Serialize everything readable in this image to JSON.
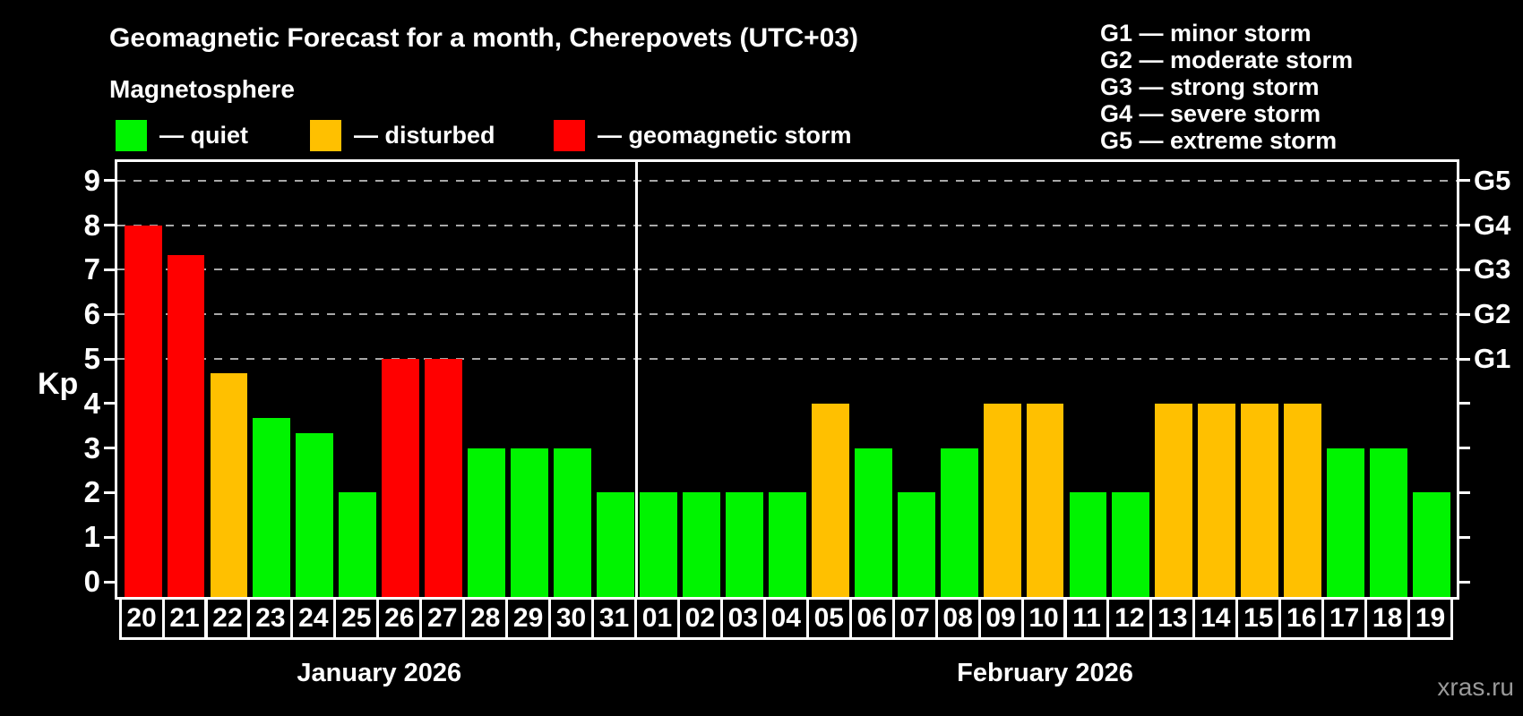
{
  "title": "Geomagnetic Forecast for a month, Cherepovets (UTC+03)",
  "subtitle": "Magnetosphere",
  "legend": {
    "items": [
      {
        "key": "quiet",
        "label": "— quiet"
      },
      {
        "key": "disturbed",
        "label": "— disturbed"
      },
      {
        "key": "storm",
        "label": "— geomagnetic storm"
      }
    ]
  },
  "g_legend": [
    "G1 — minor storm",
    "G2 — moderate storm",
    "G3 — strong storm",
    "G4 — severe storm",
    "G5 — extreme storm"
  ],
  "colors": {
    "quiet": "#00f400",
    "disturbed": "#ffc000",
    "storm": "#ff0000",
    "grid": "#a8a8a8",
    "axis": "#ffffff",
    "background": "#000000",
    "watermark": "#999999"
  },
  "watermark": "xras.ru",
  "chart_data": {
    "type": "bar",
    "title": "Geomagnetic Forecast for a month, Cherepovets (UTC+03)",
    "ylabel": "Kp",
    "ylim": [
      -0.4,
      9.4
    ],
    "y_ticks": [
      "0",
      "1",
      "2",
      "3",
      "4",
      "5",
      "6",
      "7",
      "8",
      "9"
    ],
    "grid_lines_kp": [
      5,
      6,
      7,
      8,
      9
    ],
    "right_axis": [
      {
        "kp": 5,
        "label": "G1"
      },
      {
        "kp": 6,
        "label": "G2"
      },
      {
        "kp": 7,
        "label": "G3"
      },
      {
        "kp": 8,
        "label": "G4"
      },
      {
        "kp": 9,
        "label": "G5"
      }
    ],
    "months": [
      {
        "label": "January 2026",
        "days": 12
      },
      {
        "label": "February 2026",
        "days": 19
      }
    ],
    "categories": [
      "20",
      "21",
      "22",
      "23",
      "24",
      "25",
      "26",
      "27",
      "28",
      "29",
      "30",
      "31",
      "01",
      "02",
      "03",
      "04",
      "05",
      "06",
      "07",
      "08",
      "09",
      "10",
      "11",
      "12",
      "13",
      "14",
      "15",
      "16",
      "17",
      "18",
      "19"
    ],
    "values": [
      8,
      7.33,
      4.67,
      3.67,
      3.33,
      2,
      5,
      5,
      3,
      3,
      3,
      2,
      2,
      2,
      2,
      2,
      4,
      3,
      2,
      3,
      4,
      4,
      2,
      2,
      4,
      4,
      4,
      4,
      3,
      3,
      2
    ],
    "status": [
      "storm",
      "storm",
      "disturbed",
      "quiet",
      "quiet",
      "quiet",
      "storm",
      "storm",
      "quiet",
      "quiet",
      "quiet",
      "quiet",
      "quiet",
      "quiet",
      "quiet",
      "quiet",
      "disturbed",
      "quiet",
      "quiet",
      "quiet",
      "disturbed",
      "disturbed",
      "quiet",
      "quiet",
      "disturbed",
      "disturbed",
      "disturbed",
      "disturbed",
      "quiet",
      "quiet",
      "quiet"
    ]
  }
}
